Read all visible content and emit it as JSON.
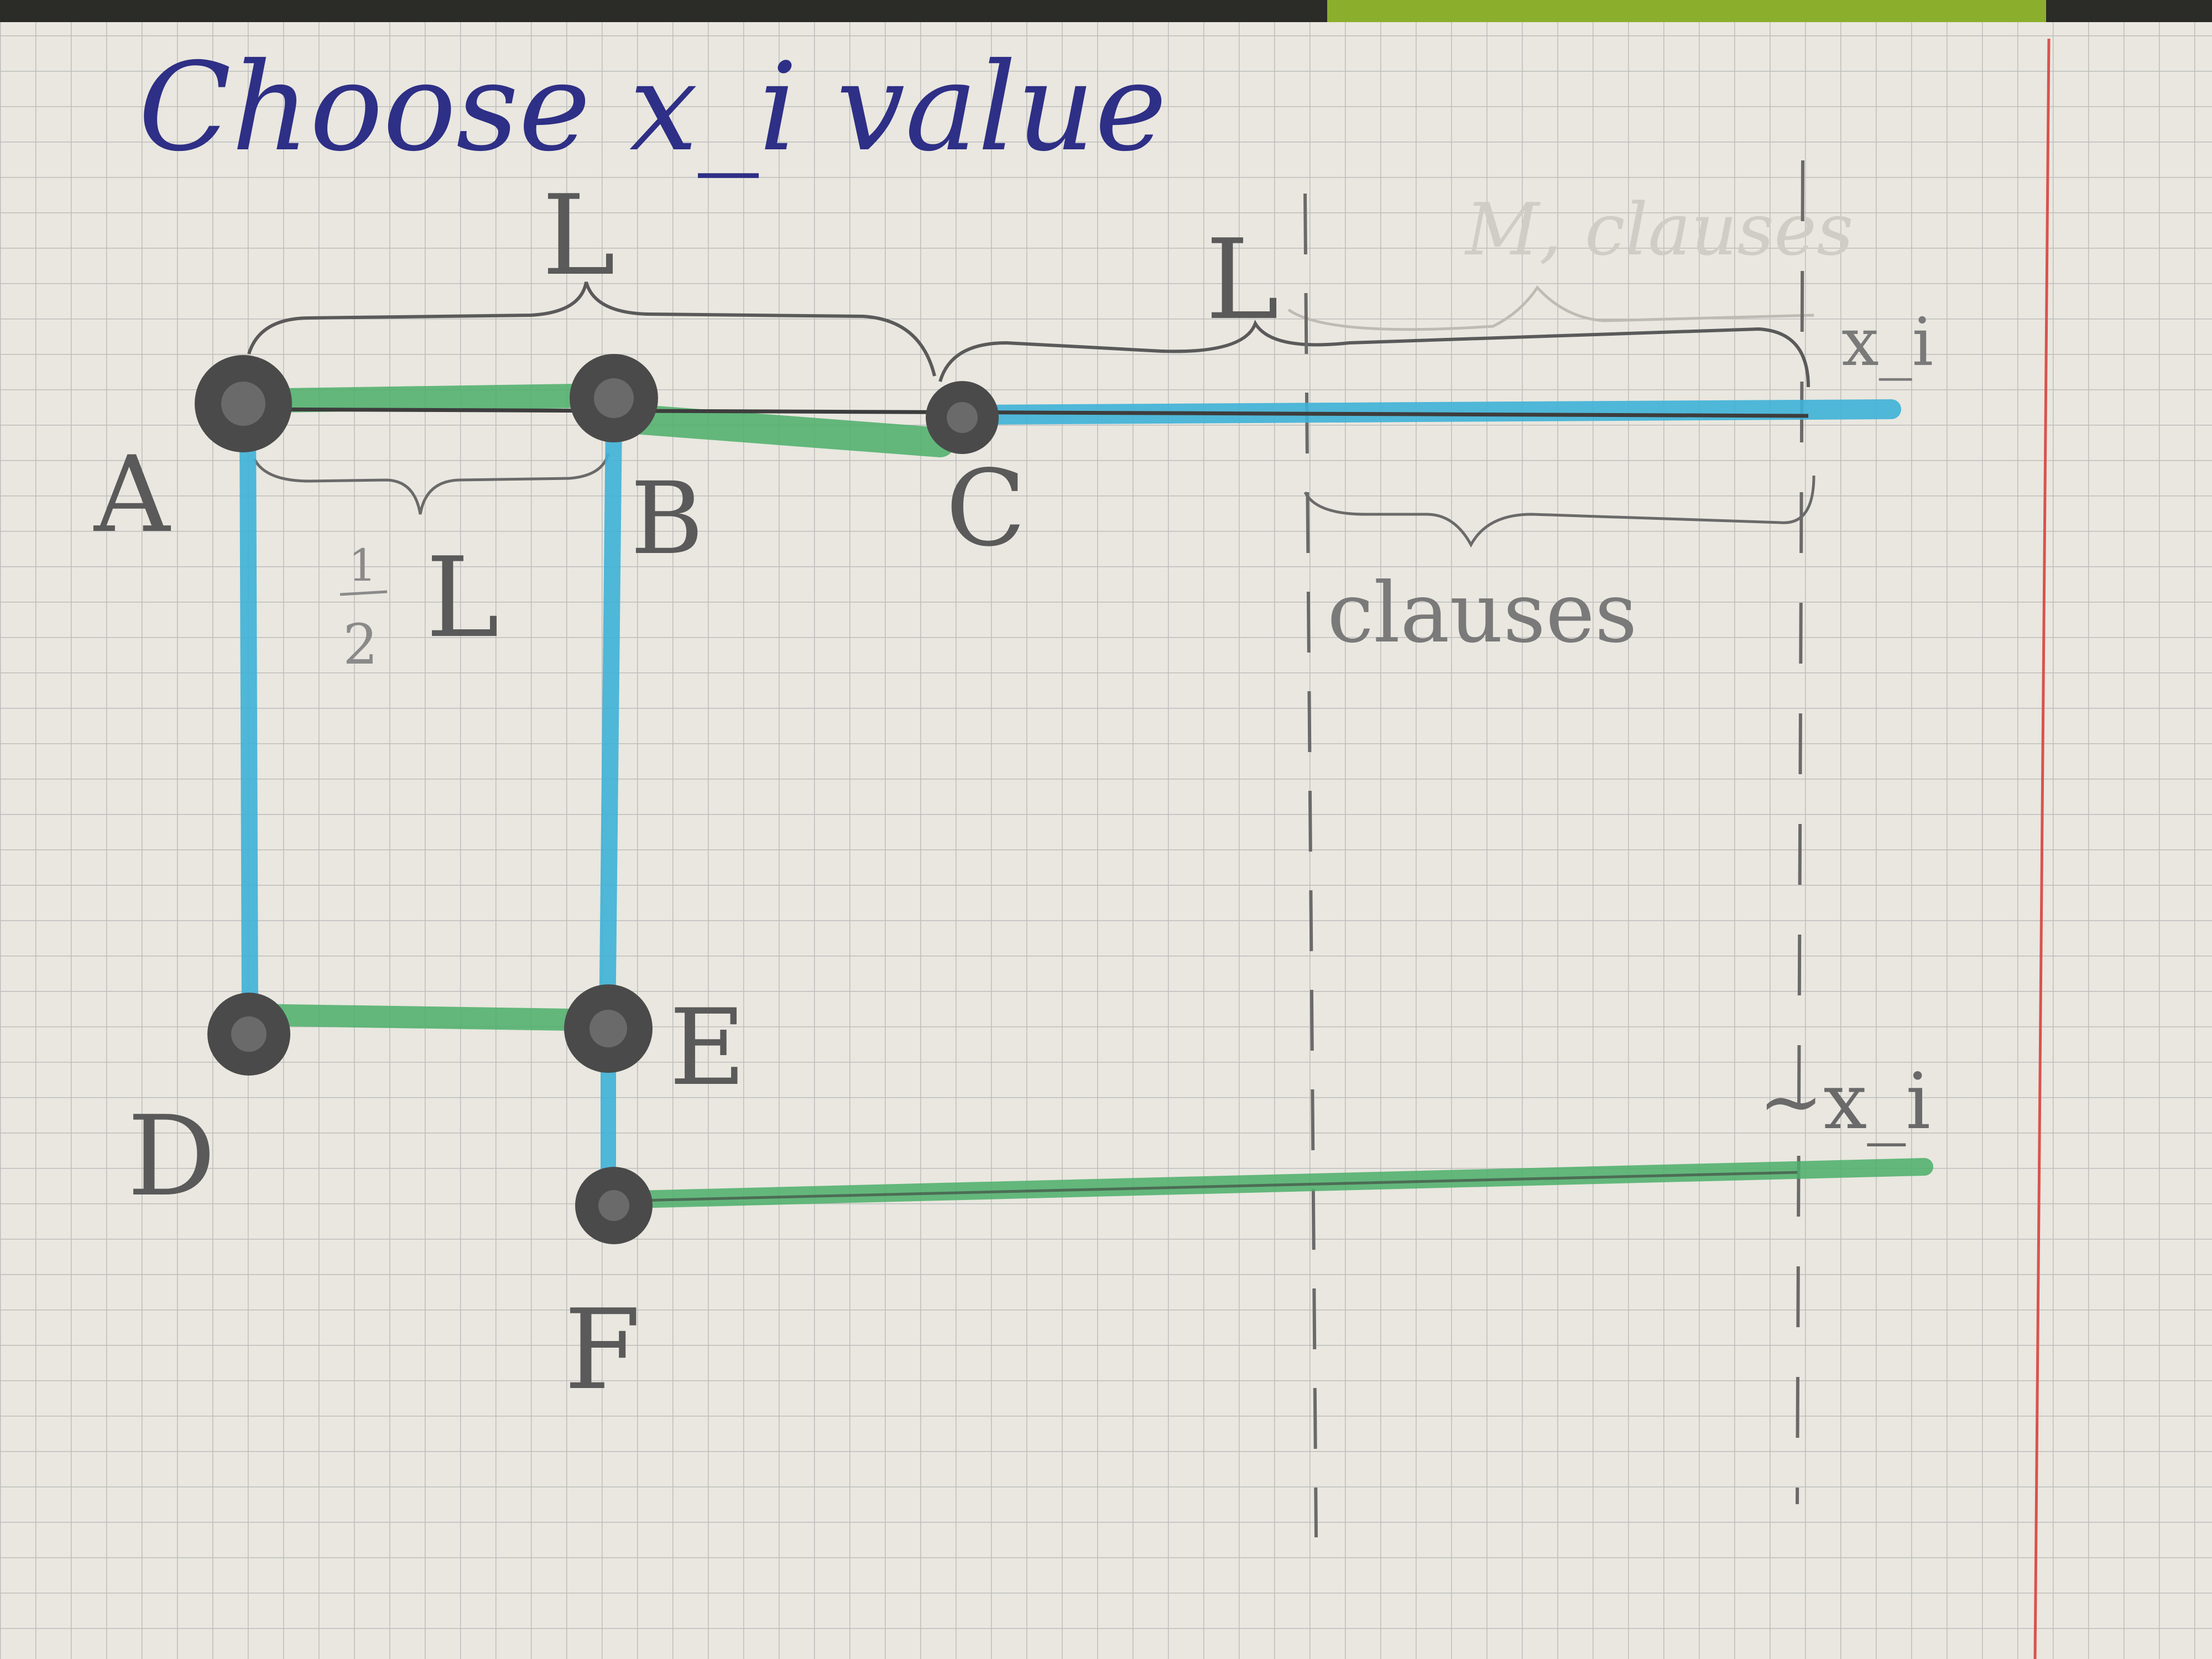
{
  "title": "Choose x_i value",
  "labels": {
    "brace_top_left": "L",
    "brace_top_right": "L",
    "brace_faint_top": "M, clauses",
    "half_L": "L",
    "clauses": "clauses",
    "x_i": "x_i",
    "not_x_i": "~x_i"
  },
  "fraction": {
    "numerator": "1",
    "denominator": "2"
  },
  "nodes": [
    {
      "id": "A",
      "label": "A"
    },
    {
      "id": "B",
      "label": "B"
    },
    {
      "id": "C",
      "label": "C"
    },
    {
      "id": "D",
      "label": "D"
    },
    {
      "id": "E",
      "label": "E"
    },
    {
      "id": "F",
      "label": "F"
    }
  ],
  "edges": [
    {
      "from": "A",
      "to": "B",
      "color": "green"
    },
    {
      "from": "B",
      "to": "C",
      "color": "green"
    },
    {
      "from": "C",
      "to": "x_i",
      "color": "blue"
    },
    {
      "from": "A",
      "to": "D",
      "color": "blue"
    },
    {
      "from": "B",
      "to": "E",
      "color": "blue"
    },
    {
      "from": "D",
      "to": "E",
      "color": "green"
    },
    {
      "from": "E",
      "to": "F",
      "color": "blue"
    },
    {
      "from": "F",
      "to": "~x_i",
      "color": "green"
    }
  ],
  "colors": {
    "paper": "#e9e7df",
    "grid": "#bdbdbd",
    "margin_line": "#d9534f",
    "ink_blue": "#2e2f86",
    "pencil": "#5a5a5a",
    "green": "#4caf6a",
    "blue": "#3fb2d8",
    "node": "#4a4a4a"
  }
}
